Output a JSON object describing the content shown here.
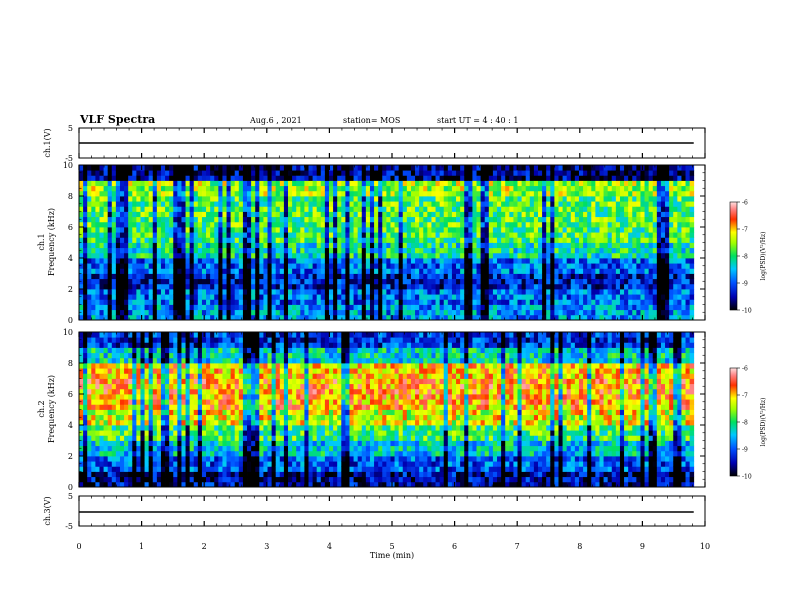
{
  "header": {
    "title": "VLF Spectra",
    "date": "Aug.6 , 2021",
    "station": "station= MOS",
    "start": "start UT = 4 : 40 : 1"
  },
  "chart_data": [
    {
      "type": "line",
      "id": "ch1-waveform",
      "ylabel": "ch.1(V)",
      "yticks": [
        "5",
        "-5"
      ],
      "ylim": [
        -5,
        5
      ],
      "xlim": [
        0,
        10
      ],
      "series": [
        {
          "x": [
            0,
            9.82
          ],
          "y": [
            0,
            0
          ]
        }
      ]
    },
    {
      "type": "heatmap",
      "id": "ch1-spectrogram",
      "ylabel": "ch.1\nFrequency (kHz)",
      "ylim": [
        0,
        10
      ],
      "xlim": [
        0,
        10
      ],
      "yticks": [
        "0",
        "2",
        "4",
        "6",
        "8",
        "10"
      ],
      "data_extent_min": 9.82,
      "colorbar": {
        "label": "log(PSD)(V²/Hz)",
        "ticks": [
          "-6",
          "-7",
          "-8",
          "-9",
          "-10"
        ],
        "range": [
          -10,
          -6
        ]
      },
      "band_profile": [
        {
          "f": 0.5,
          "v": -8.7
        },
        {
          "f": 1.5,
          "v": -8.9
        },
        {
          "f": 2.5,
          "v": -9.3
        },
        {
          "f": 3.5,
          "v": -8.9
        },
        {
          "f": 4.5,
          "v": -8.2
        },
        {
          "f": 5.5,
          "v": -7.9
        },
        {
          "f": 6.5,
          "v": -7.8
        },
        {
          "f": 7.5,
          "v": -7.8
        },
        {
          "f": 8.5,
          "v": -7.5
        },
        {
          "f": 9.5,
          "v": -9.6
        }
      ]
    },
    {
      "type": "heatmap",
      "id": "ch2-spectrogram",
      "ylabel": "ch.2\nFrequency (kHz)",
      "ylim": [
        0,
        10
      ],
      "xlim": [
        0,
        10
      ],
      "yticks": [
        "0",
        "2",
        "4",
        "6",
        "8",
        "10"
      ],
      "data_extent_min": 9.82,
      "colorbar": {
        "label": "log(PSD)(V²/Hz)",
        "ticks": [
          "-6",
          "-7",
          "-8",
          "-9",
          "-10"
        ],
        "range": [
          -10,
          -6
        ]
      },
      "band_profile": [
        {
          "f": 0.5,
          "v": -9.5
        },
        {
          "f": 1.5,
          "v": -9.0
        },
        {
          "f": 2.5,
          "v": -8.4
        },
        {
          "f": 3.5,
          "v": -7.9
        },
        {
          "f": 4.5,
          "v": -7.3
        },
        {
          "f": 5.5,
          "v": -6.9
        },
        {
          "f": 6.5,
          "v": -6.8
        },
        {
          "f": 7.5,
          "v": -7.0
        },
        {
          "f": 8.5,
          "v": -8.3
        },
        {
          "f": 9.5,
          "v": -9.2
        }
      ]
    },
    {
      "type": "line",
      "id": "ch3-waveform",
      "ylabel": "ch.3(V)",
      "yticks": [
        "5",
        "-5"
      ],
      "ylim": [
        -5,
        5
      ],
      "xlim": [
        0,
        10
      ],
      "xlabel": "Time (min)",
      "xticks": [
        "0",
        "1",
        "2",
        "3",
        "4",
        "5",
        "6",
        "7",
        "8",
        "9",
        "10"
      ],
      "series": [
        {
          "x": [
            0,
            9.82
          ],
          "y": [
            0,
            0
          ]
        }
      ]
    }
  ]
}
